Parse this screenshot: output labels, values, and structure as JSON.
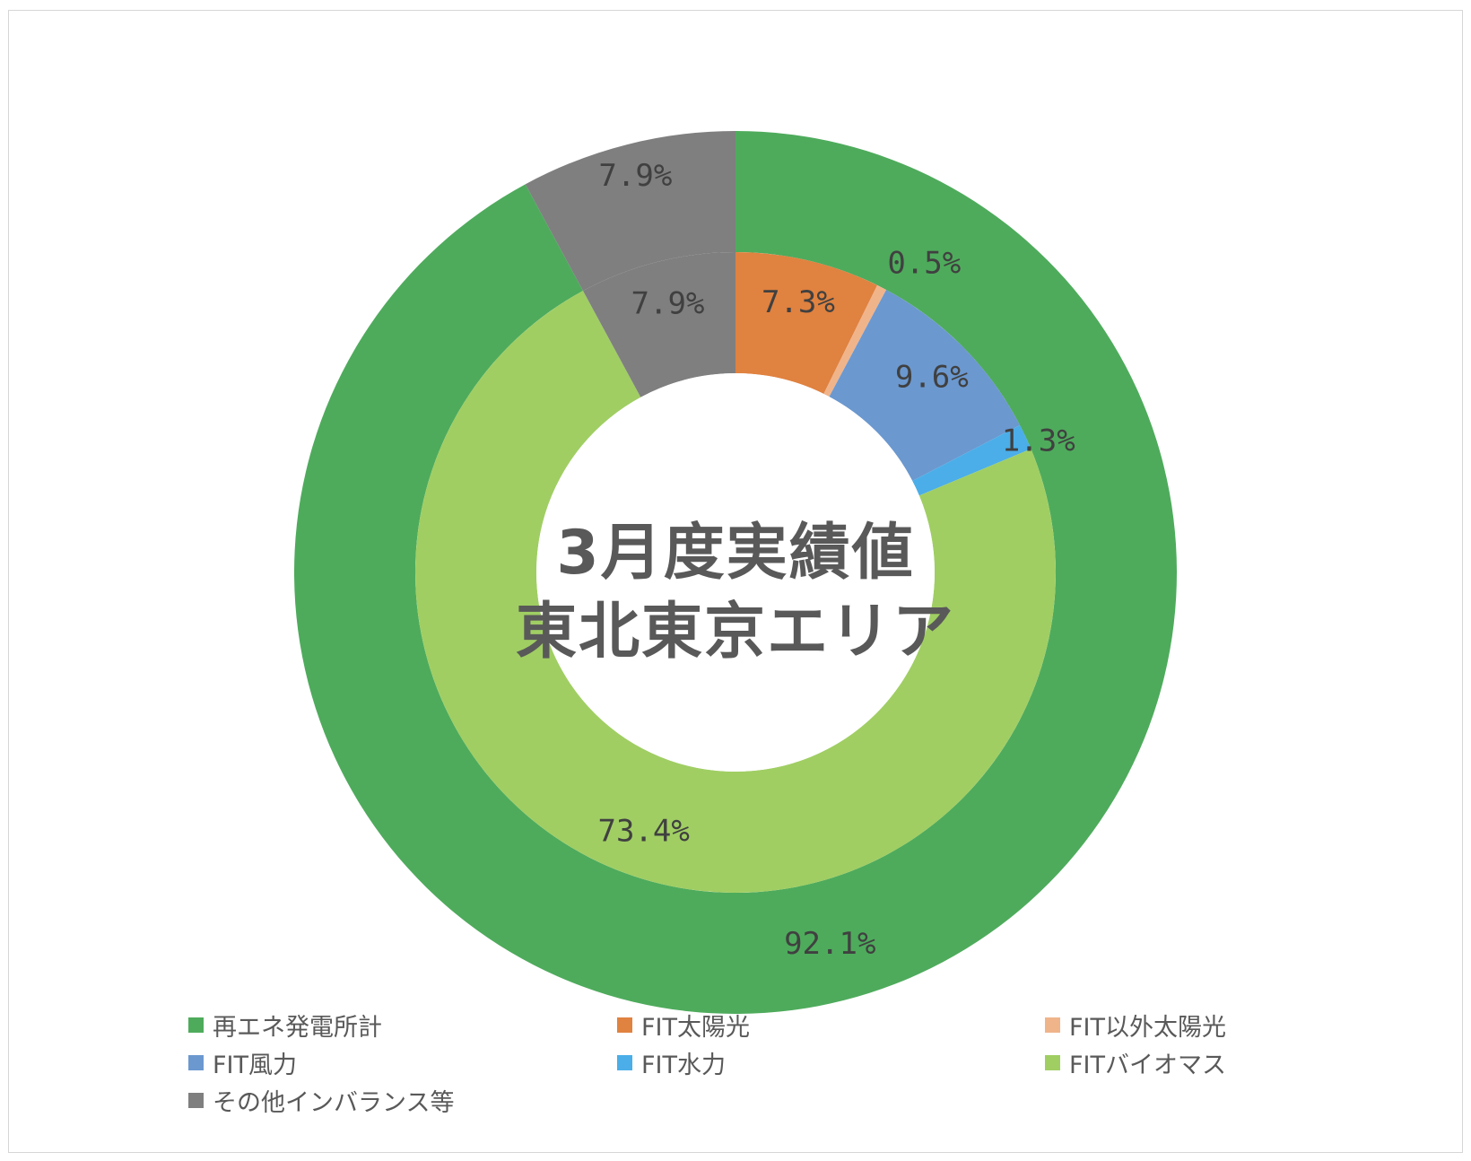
{
  "chart_data": {
    "type": "donut",
    "title": "3月度実績値",
    "subtitle": "東北東京エリア",
    "outer_ring": {
      "slices": [
        {
          "name": "再エネ発電所計",
          "value": 92.1,
          "label": "92.1%",
          "color": "#4EAB5C"
        },
        {
          "name": "その他インバランス等",
          "value": 7.9,
          "label": "7.9%",
          "color": "#7F7F7F"
        }
      ]
    },
    "inner_ring": {
      "slices": [
        {
          "name": "FIT太陽光",
          "value": 7.3,
          "label": "7.3%",
          "color": "#E08240"
        },
        {
          "name": "FIT以外太陽光",
          "value": 0.5,
          "label": "0.5%",
          "color": "#F0B48B"
        },
        {
          "name": "FIT風力",
          "value": 9.6,
          "label": "9.6%",
          "color": "#6B98CF"
        },
        {
          "name": "FIT水力",
          "value": 1.3,
          "label": "1.3%",
          "color": "#4BAEE8"
        },
        {
          "name": "FITバイオマス",
          "value": 73.4,
          "label": "73.4%",
          "color": "#A0CE63"
        },
        {
          "name": "その他インバランス等",
          "value": 7.9,
          "label": "7.9%",
          "color": "#7F7F7F"
        }
      ]
    },
    "legend": {
      "placement": "bottom",
      "entries": [
        {
          "label": "再エネ発電所計",
          "color": "#4EAB5C"
        },
        {
          "label": "FIT太陽光",
          "color": "#E08240"
        },
        {
          "label": "FIT以外太陽光",
          "color": "#F0B48B"
        },
        {
          "label": "FIT風力",
          "color": "#6B98CF"
        },
        {
          "label": "FIT水力",
          "color": "#4BAEE8"
        },
        {
          "label": "FITバイオマス",
          "color": "#A0CE63"
        },
        {
          "label": "その他インバランス等",
          "color": "#7F7F7F"
        }
      ]
    }
  }
}
